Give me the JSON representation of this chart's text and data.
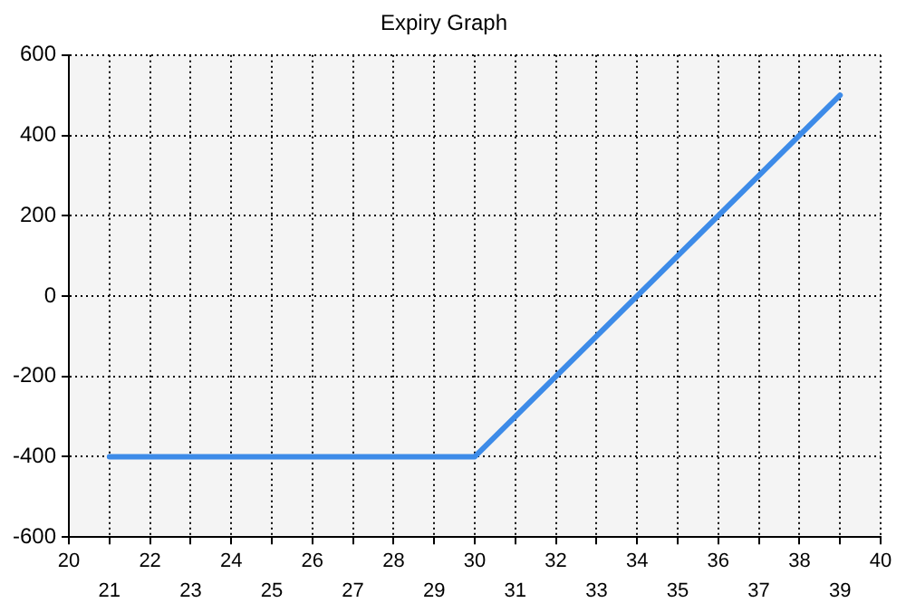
{
  "chart_data": {
    "type": "line",
    "title": "Expiry Graph",
    "series": [
      {
        "color": "#3d8be8",
        "x": [
          21,
          30,
          39
        ],
        "values": [
          -400,
          -400,
          500
        ]
      }
    ],
    "xlim": [
      20,
      40
    ],
    "xticks": [
      20,
      {
        "value": 21,
        "label": null
      },
      22,
      {
        "value": 23,
        "label": null
      },
      24,
      {
        "value": 25,
        "label": null
      },
      26,
      {
        "value": 27,
        "label": null
      },
      28,
      {
        "value": 29,
        "label": null
      },
      30,
      {
        "value": 31,
        "label": null
      },
      32,
      {
        "value": 33,
        "label": null
      },
      34,
      {
        "value": 35,
        "label": null
      },
      36,
      {
        "value": 37,
        "label": null
      },
      38,
      {
        "value": 39,
        "label": null
      },
      40
    ],
    "x2lim": [
      20,
      40
    ],
    "x2ticks": [
      21,
      23,
      25,
      27,
      29,
      31,
      33,
      35,
      37,
      39
    ],
    "ylim": [
      -600,
      600
    ],
    "yticks": [
      -600,
      -400,
      -200,
      0,
      200,
      400,
      600
    ],
    "grid": true,
    "legend": false,
    "marker": "none",
    "line_style": "solid"
  }
}
